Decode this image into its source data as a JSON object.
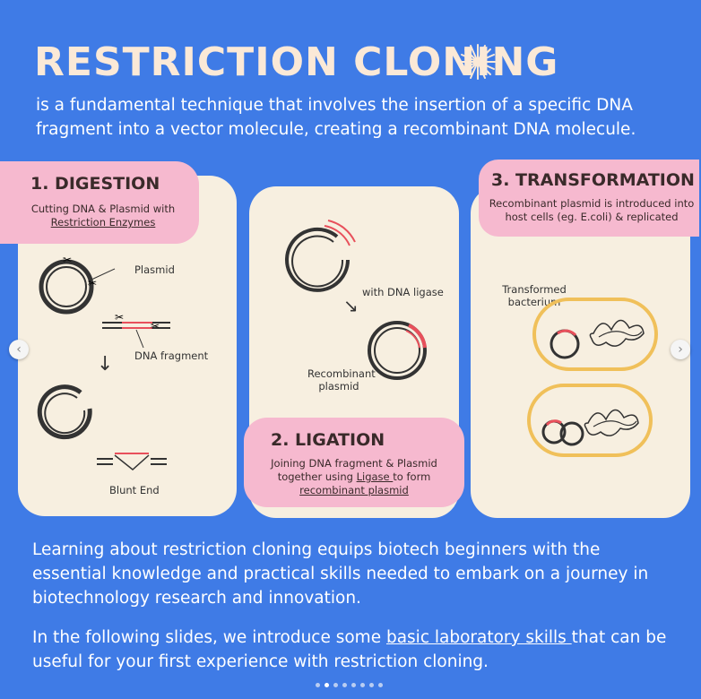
{
  "title": "RESTRICTION CLONING",
  "intro": "is a fundamental technique that involves the insertion of a specific DNA fragment into a vector molecule, creating a recombinant DNA molecule.",
  "digestion": {
    "heading": "1. DIGESTION",
    "desc_line1": "Cutting DNA & Plasmid with",
    "desc_link": "Restriction Enzymes",
    "label_plasmid": "Plasmid",
    "label_fragment": "DNA fragment",
    "label_blunt": "Blunt End"
  },
  "ligation": {
    "label_ligase": "with DNA ligase",
    "label_recombinant": "Recombinant plasmid",
    "heading": "2. LIGATION",
    "desc_line1": "Joining DNA fragment & Plasmid",
    "desc_line2a": "together using ",
    "desc_link1": "Ligase ",
    "desc_line2b": "to form",
    "desc_link2": "recombinant plasmid"
  },
  "transformation": {
    "heading": "3. TRANSFORMATION",
    "desc": "Recombinant plasmid is introduced into host cells (eg. E.coli) & replicated",
    "label_bacterium": "Transformed bacterium"
  },
  "para1": "Learning about restriction cloning equips biotech beginners with the essential knowledge and practical skills needed to embark on a journey in biotechnology research and innovation.",
  "para2_before": "In the following slides, we introduce some ",
  "para2_link": "basic laboratory skills ",
  "para2_after": "that can be useful for your first experience with restriction cloning.",
  "nav": {
    "prev": "‹",
    "next": "›"
  },
  "pagination": {
    "total": 8,
    "active": 1
  },
  "colors": {
    "background": "#3f7be6",
    "card": "#f7efe0",
    "pink": "#f6b9cf",
    "accent_red": "#e8505b",
    "bacterium": "#f0c05a"
  }
}
